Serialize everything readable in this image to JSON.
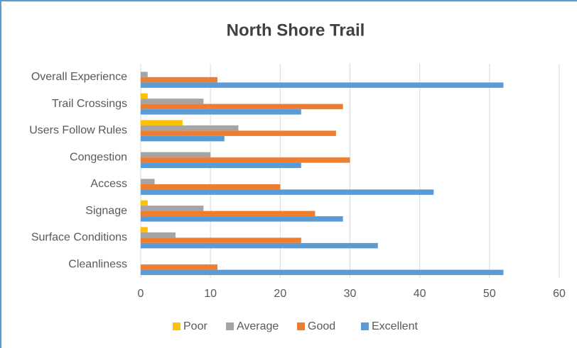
{
  "chart_data": {
    "type": "bar",
    "orientation": "horizontal",
    "title": "North Shore Trail",
    "categories": [
      "Overall Experience",
      "Trail Crossings",
      "Users Follow Rules",
      "Congestion",
      "Access",
      "Signage",
      "Surface Conditions",
      "Cleanliness"
    ],
    "series": [
      {
        "name": "Poor",
        "color": "#ffc000",
        "values": [
          0,
          1,
          6,
          0,
          0,
          1,
          1,
          0
        ]
      },
      {
        "name": "Average",
        "color": "#a5a5a5",
        "values": [
          1,
          9,
          14,
          10,
          2,
          9,
          5,
          0
        ]
      },
      {
        "name": "Good",
        "color": "#ed7d31",
        "values": [
          11,
          29,
          28,
          30,
          20,
          25,
          23,
          11
        ]
      },
      {
        "name": "Excellent",
        "color": "#5b9bd5",
        "values": [
          52,
          23,
          12,
          23,
          42,
          29,
          34,
          52
        ]
      }
    ],
    "xlim": [
      0,
      60
    ],
    "xticks": [
      0,
      10,
      20,
      30,
      40,
      50,
      60
    ],
    "grid": true,
    "legend": "bottom"
  }
}
